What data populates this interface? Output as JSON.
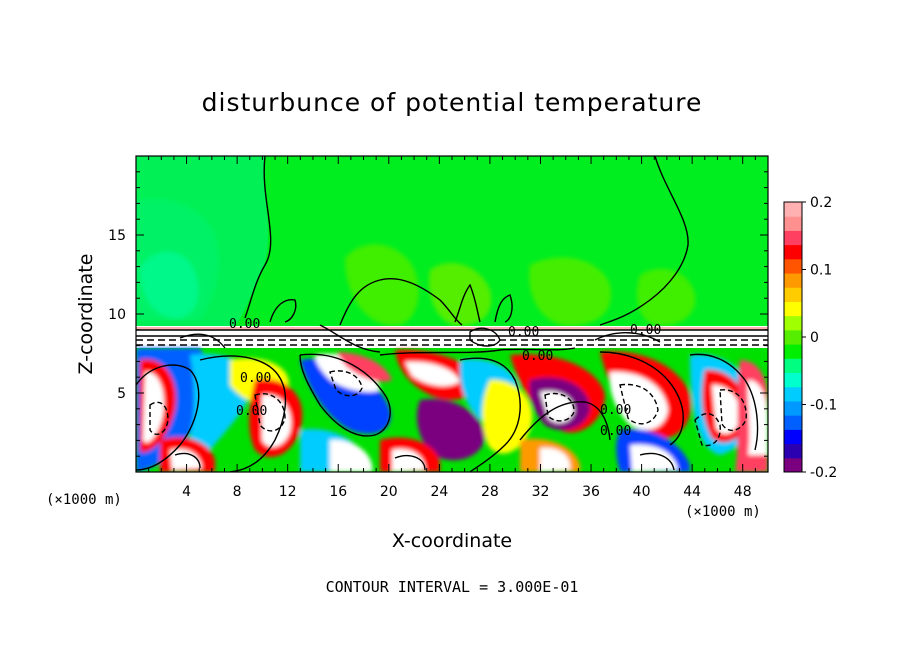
{
  "chart_data": {
    "type": "heatmap",
    "title": "disturbunce of potential temperature",
    "xlabel": "X-coordinate",
    "ylabel": "Z-coordinate",
    "x_unit": "(×1000 m)",
    "y_unit": "(×1000 m)",
    "xlim": [
      0,
      50
    ],
    "ylim": [
      0,
      20
    ],
    "x_ticks": [
      4,
      8,
      12,
      16,
      20,
      24,
      28,
      32,
      36,
      40,
      44,
      48
    ],
    "y_ticks": [
      5,
      10,
      15
    ],
    "colorbar": {
      "min": -0.2,
      "max": 0.2,
      "tick_values": [
        0.2,
        0.1,
        0,
        -0.1,
        -0.2
      ],
      "tick_labels": [
        "0.2",
        "0.1",
        "0",
        "-0.1",
        "-0.2"
      ],
      "colors": [
        "#7a0080",
        "#2a00b0",
        "#0000ff",
        "#0060ff",
        "#0099ff",
        "#00ccff",
        "#00ffcc",
        "#00ff80",
        "#00ee00",
        "#55ee00",
        "#a0ff00",
        "#ffff00",
        "#ffcc00",
        "#ff9900",
        "#ff5500",
        "#ff0000",
        "#ff4060",
        "#ff9090",
        "#ffb0b0"
      ]
    },
    "contour_labels": [
      "0.00",
      "0.00",
      "0.00",
      "0.00",
      "0.00",
      "0.00",
      "0.00",
      "0.00"
    ],
    "contour_interval_label": "CONTOUR INTERVAL = 3.000E-01"
  }
}
